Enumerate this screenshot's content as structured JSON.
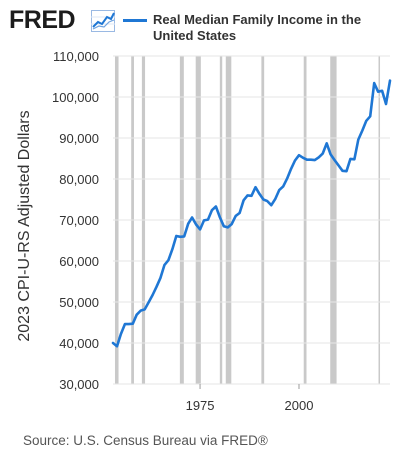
{
  "header": {
    "logo": "FRED",
    "logo_icon": "line-graph-icon",
    "legend_label": "Real Median Family Income in the United States"
  },
  "source": "Source: U.S. Census Bureau via FRED®",
  "colors": {
    "series": "#1f77d4",
    "recession": "#c9c9c9",
    "text": "#333333"
  },
  "chart_data": {
    "type": "line",
    "ylabel": "2023 CPI-U-RS Adjusted Dollars",
    "xlabel": "",
    "xlim": [
      1953,
      2023
    ],
    "ylim": [
      30000,
      110000
    ],
    "y_ticks": [
      30000,
      40000,
      50000,
      60000,
      70000,
      80000,
      90000,
      100000,
      110000
    ],
    "y_tick_labels": [
      "30,000",
      "40,000",
      "50,000",
      "60,000",
      "70,000",
      "80,000",
      "90,000",
      "100,000",
      "110,000"
    ],
    "x_ticks": [
      1975,
      2000
    ],
    "x_tick_labels": [
      "1975",
      "2000"
    ],
    "recessions": [
      [
        1953.5,
        1954.4
      ],
      [
        1957.6,
        1958.3
      ],
      [
        1960.3,
        1961.1
      ],
      [
        1969.9,
        1970.9
      ],
      [
        1973.9,
        1975.2
      ],
      [
        1980.0,
        1980.6
      ],
      [
        1981.5,
        1982.9
      ],
      [
        1990.5,
        1991.2
      ],
      [
        2001.2,
        2001.9
      ],
      [
        2007.9,
        2009.5
      ],
      [
        2020.1,
        2020.4
      ]
    ],
    "series": [
      {
        "name": "Real Median Family Income in the United States",
        "x": [
          1953,
          1954,
          1955,
          1956,
          1957,
          1958,
          1959,
          1960,
          1961,
          1962,
          1963,
          1964,
          1965,
          1966,
          1967,
          1968,
          1969,
          1970,
          1971,
          1972,
          1973,
          1974,
          1975,
          1976,
          1977,
          1978,
          1979,
          1980,
          1981,
          1982,
          1983,
          1984,
          1985,
          1986,
          1987,
          1988,
          1989,
          1990,
          1991,
          1992,
          1993,
          1994,
          1995,
          1996,
          1997,
          1998,
          1999,
          2000,
          2001,
          2002,
          2003,
          2004,
          2005,
          2006,
          2007,
          2008,
          2009,
          2010,
          2011,
          2012,
          2013,
          2014,
          2015,
          2016,
          2017,
          2018,
          2019,
          2020,
          2021,
          2022,
          2023
        ],
        "values": [
          40000,
          39200,
          42200,
          44600,
          44600,
          44700,
          46900,
          47900,
          48200,
          49900,
          51700,
          53700,
          55900,
          59000,
          60200,
          62900,
          66100,
          65900,
          66000,
          69100,
          70600,
          68900,
          67700,
          69900,
          70100,
          72400,
          73300,
          70700,
          68500,
          68200,
          69000,
          71000,
          71700,
          74800,
          76000,
          75900,
          78000,
          76400,
          75000,
          74600,
          73600,
          75100,
          77300,
          78200,
          80100,
          82500,
          84500,
          85800,
          85200,
          84700,
          84700,
          84600,
          85300,
          86200,
          88700,
          86000,
          84600,
          83300,
          82000,
          81900,
          84900,
          84800,
          89600,
          91800,
          94200,
          95300,
          103400,
          101300,
          101500,
          98300,
          104000
        ]
      }
    ]
  }
}
